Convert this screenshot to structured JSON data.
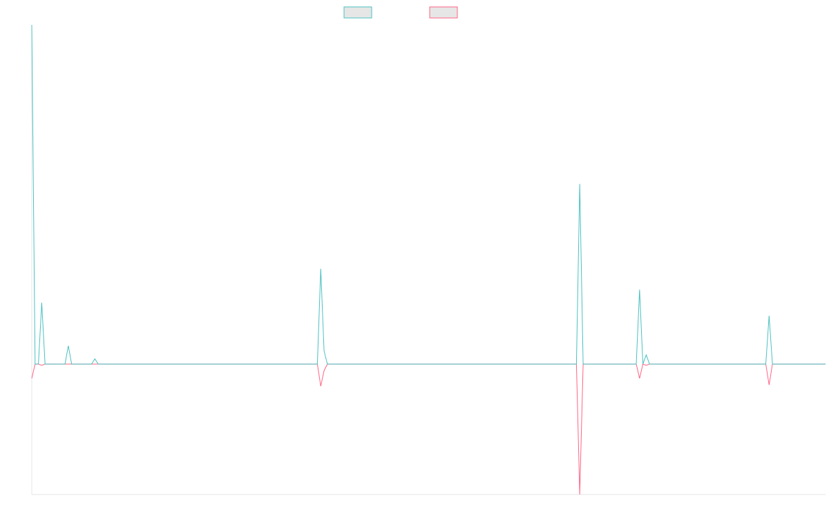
{
  "chart_data": {
    "type": "line",
    "title": "",
    "xlabel": "",
    "ylabel": "",
    "grid": false,
    "legend_position": "top",
    "x_range": [
      0,
      239
    ],
    "ylim": [
      -100,
      260
    ],
    "series": [
      {
        "color": "#4bc0c0",
        "points": [
          [
            0,
            260
          ],
          [
            1,
            0
          ],
          [
            2,
            0
          ],
          [
            3,
            47
          ],
          [
            4,
            0
          ],
          [
            5,
            0
          ],
          [
            6,
            0
          ],
          [
            7,
            0
          ],
          [
            8,
            0
          ],
          [
            9,
            0
          ],
          [
            10,
            0
          ],
          [
            11,
            14
          ],
          [
            12,
            0
          ],
          [
            13,
            0
          ],
          [
            14,
            0
          ],
          [
            15,
            0
          ],
          [
            16,
            0
          ],
          [
            17,
            0
          ],
          [
            18,
            0
          ],
          [
            19,
            4
          ],
          [
            20,
            0
          ],
          [
            86,
            0
          ],
          [
            87,
            73
          ],
          [
            88,
            10
          ],
          [
            89,
            0
          ],
          [
            164,
            0
          ],
          [
            165,
            138
          ],
          [
            166,
            0
          ],
          [
            182,
            0
          ],
          [
            183,
            57
          ],
          [
            184,
            0
          ],
          [
            185,
            7
          ],
          [
            186,
            0
          ],
          [
            221,
            0
          ],
          [
            222,
            37
          ],
          [
            223,
            0
          ],
          [
            239,
            0
          ]
        ]
      },
      {
        "color": "#ff6384",
        "points": [
          [
            0,
            -11
          ],
          [
            1,
            0
          ],
          [
            2,
            0
          ],
          [
            3,
            -1
          ],
          [
            4,
            0
          ],
          [
            86,
            0
          ],
          [
            87,
            -17
          ],
          [
            88,
            -5
          ],
          [
            89,
            0
          ],
          [
            164,
            0
          ],
          [
            165,
            -100
          ],
          [
            166,
            0
          ],
          [
            182,
            0
          ],
          [
            183,
            -11
          ],
          [
            184,
            0
          ],
          [
            185,
            -1
          ],
          [
            186,
            0
          ],
          [
            221,
            0
          ],
          [
            222,
            -16
          ],
          [
            223,
            0
          ],
          [
            239,
            0
          ]
        ]
      }
    ]
  }
}
